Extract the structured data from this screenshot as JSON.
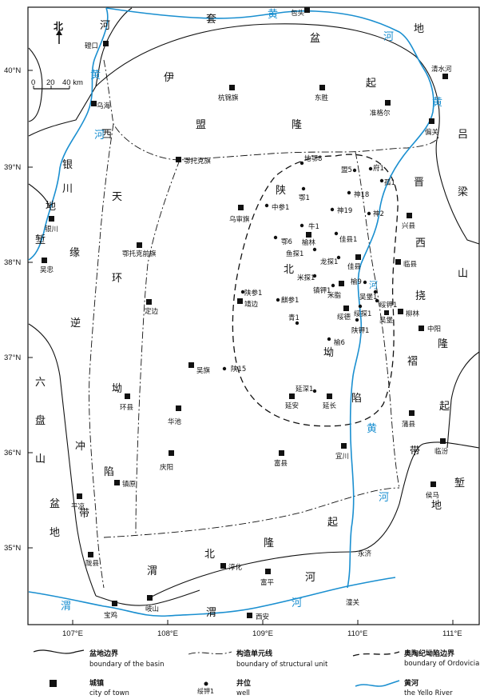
{
  "north": {
    "label": "北"
  },
  "scale": {
    "labels": [
      "0",
      "20",
      "40 km"
    ]
  },
  "lat_ticks": [
    "40°N",
    "39°N",
    "38°N",
    "37°N",
    "36°N",
    "35°N"
  ],
  "lon_ticks": [
    "107°E",
    "108°E",
    "109°E",
    "110°E",
    "111°E"
  ],
  "regions": [
    {
      "id": "he1",
      "text": "河"
    },
    {
      "id": "tao",
      "text": "套"
    },
    {
      "id": "pen",
      "text": "盆"
    },
    {
      "id": "di1",
      "text": "地"
    },
    {
      "id": "yi",
      "text": "伊"
    },
    {
      "id": "meng",
      "text": "盟"
    },
    {
      "id": "long1",
      "text": "隆"
    },
    {
      "id": "qi1",
      "text": "起"
    },
    {
      "id": "lv",
      "text": "吕"
    },
    {
      "id": "liang",
      "text": "梁"
    },
    {
      "id": "shan1",
      "text": "山"
    },
    {
      "id": "jin",
      "text": "晋"
    },
    {
      "id": "xi1",
      "text": "西"
    },
    {
      "id": "nao",
      "text": "挠"
    },
    {
      "id": "long2",
      "text": "隆"
    },
    {
      "id": "zhe",
      "text": "褶"
    },
    {
      "id": "qi2",
      "text": "起"
    },
    {
      "id": "dai1",
      "text": "带"
    },
    {
      "id": "di2",
      "text": "地"
    },
    {
      "id": "qian1",
      "text": "堑"
    },
    {
      "id": "yin",
      "text": "银"
    },
    {
      "id": "chuan",
      "text": "川"
    },
    {
      "id": "di3",
      "text": "地"
    },
    {
      "id": "qian2",
      "text": "堑"
    },
    {
      "id": "xi2",
      "text": "西"
    },
    {
      "id": "tian",
      "text": "天"
    },
    {
      "id": "yuan",
      "text": "缘"
    },
    {
      "id": "huan",
      "text": "环"
    },
    {
      "id": "ni",
      "text": "逆"
    },
    {
      "id": "ao1",
      "text": "坳"
    },
    {
      "id": "chong",
      "text": "冲"
    },
    {
      "id": "xian1",
      "text": "陷"
    },
    {
      "id": "dai2",
      "text": "带"
    },
    {
      "id": "liu",
      "text": "六"
    },
    {
      "id": "pan",
      "text": "盘"
    },
    {
      "id": "shan2",
      "text": "山"
    },
    {
      "id": "pen2",
      "text": "盆"
    },
    {
      "id": "di4",
      "text": "地"
    },
    {
      "id": "shan3",
      "text": "陕"
    },
    {
      "id": "bei1",
      "text": "北"
    },
    {
      "id": "ao2",
      "text": "坳"
    },
    {
      "id": "xian2",
      "text": "陷"
    },
    {
      "id": "wei1",
      "text": "渭"
    },
    {
      "id": "bei2",
      "text": "北"
    },
    {
      "id": "long3",
      "text": "隆"
    },
    {
      "id": "qi3",
      "text": "起"
    },
    {
      "id": "wei2",
      "text": "渭"
    },
    {
      "id": "he2",
      "text": "河"
    },
    {
      "id": "qi4",
      "text": "起"
    }
  ],
  "rivers": [
    {
      "id": "r1",
      "text": "黄"
    },
    {
      "id": "r2",
      "text": "河"
    },
    {
      "id": "r3",
      "text": "黄"
    },
    {
      "id": "r4",
      "text": "河"
    },
    {
      "id": "r5",
      "text": "黄"
    },
    {
      "id": "r6",
      "text": "河"
    },
    {
      "id": "r7",
      "text": "黄"
    },
    {
      "id": "r8",
      "text": "河"
    },
    {
      "id": "r9",
      "text": "渭"
    },
    {
      "id": "r10",
      "text": "河"
    }
  ],
  "towns": [
    {
      "id": "baotou",
      "name": "包头"
    },
    {
      "id": "dengkou",
      "name": "磴口"
    },
    {
      "id": "hangjin",
      "name": "杭锦旗"
    },
    {
      "id": "dongsheng",
      "name": "东胜"
    },
    {
      "id": "zhunge",
      "name": "准格尔"
    },
    {
      "id": "qingshui",
      "name": "清水河"
    },
    {
      "id": "wuhai",
      "name": "乌海"
    },
    {
      "id": "pianguan",
      "name": "偏关"
    },
    {
      "id": "etuoke",
      "name": "鄂托克旗"
    },
    {
      "id": "wushen",
      "name": "乌审旗"
    },
    {
      "id": "xingxian",
      "name": "兴县"
    },
    {
      "id": "yinchuan",
      "name": "银川"
    },
    {
      "id": "etuokeqian",
      "name": "鄂托克前旗"
    },
    {
      "id": "yulin",
      "name": "榆林"
    },
    {
      "id": "jiaxian",
      "name": "佳县"
    },
    {
      "id": "linxian",
      "name": "临县"
    },
    {
      "id": "wuzhong",
      "name": "吴忠"
    },
    {
      "id": "mizhi",
      "name": "米脂"
    },
    {
      "id": "dingbian",
      "name": "定边"
    },
    {
      "id": "jingbian",
      "name": "靖边"
    },
    {
      "id": "suide",
      "name": "绥德"
    },
    {
      "id": "liulin",
      "name": "柳林"
    },
    {
      "id": "wubao",
      "name": "吴堡"
    },
    {
      "id": "zhongyang",
      "name": "中阳"
    },
    {
      "id": "wuqi",
      "name": "吴旗"
    },
    {
      "id": "huanxian",
      "name": "环县"
    },
    {
      "id": "huachi",
      "name": "华池"
    },
    {
      "id": "yanan",
      "name": "延安"
    },
    {
      "id": "yanchang",
      "name": "延长"
    },
    {
      "id": "puxian",
      "name": "蒲县"
    },
    {
      "id": "qingyang",
      "name": "庆阳"
    },
    {
      "id": "fuxian",
      "name": "富县"
    },
    {
      "id": "yichuan",
      "name": "宜川"
    },
    {
      "id": "linfen",
      "name": "临汾"
    },
    {
      "id": "zhenyuan",
      "name": "镇原"
    },
    {
      "id": "pingliang",
      "name": "平凉"
    },
    {
      "id": "houma",
      "name": "侯马"
    },
    {
      "id": "longxian",
      "name": "陇县"
    },
    {
      "id": "chunhua",
      "name": "淳化"
    },
    {
      "id": "fuping",
      "name": "富平"
    },
    {
      "id": "baoji",
      "name": "宝鸡"
    },
    {
      "id": "qishan",
      "name": "岐山"
    },
    {
      "id": "xian",
      "name": "西安"
    }
  ],
  "wells": [
    {
      "id": "w1",
      "name": "地鄂8"
    },
    {
      "id": "w2",
      "name": "盟5"
    },
    {
      "id": "w3",
      "name": "府1"
    },
    {
      "id": "w4",
      "name": "鄂1"
    },
    {
      "id": "w5",
      "name": "孤1"
    },
    {
      "id": "w6",
      "name": "神18"
    },
    {
      "id": "w7",
      "name": "中参1"
    },
    {
      "id": "w8",
      "name": "神19"
    },
    {
      "id": "w9",
      "name": "神2"
    },
    {
      "id": "w10",
      "name": "牛1"
    },
    {
      "id": "w11",
      "name": "鄂6"
    },
    {
      "id": "w12",
      "name": "佳县1"
    },
    {
      "id": "w13",
      "name": "鱼探1"
    },
    {
      "id": "w14",
      "name": "龙探1"
    },
    {
      "id": "w15",
      "name": "米探1"
    },
    {
      "id": "w16",
      "name": "榆9"
    },
    {
      "id": "w17",
      "name": "镇钾1"
    },
    {
      "id": "w18",
      "name": "陕参1"
    },
    {
      "id": "w19",
      "name": "吴堡1"
    },
    {
      "id": "w20",
      "name": "麒参1"
    },
    {
      "id": "w21",
      "name": "绥钾1"
    },
    {
      "id": "w22",
      "name": "绥探1"
    },
    {
      "id": "w23",
      "name": "青1"
    },
    {
      "id": "w24",
      "name": "陕钾1"
    },
    {
      "id": "w25",
      "name": "榆6"
    },
    {
      "id": "w26",
      "name": "陕15"
    },
    {
      "id": "w27",
      "name": "延深1"
    },
    {
      "id": "w28",
      "name": "永济"
    },
    {
      "id": "w29",
      "name": "潼关"
    }
  ],
  "legend": [
    {
      "zh": "盆地边界",
      "en": "boundary of the basin"
    },
    {
      "zh": "构造单元线",
      "en": "boundary of structural unit"
    },
    {
      "zh": "奥陶纪坳陷边界",
      "en": "boundary of Ordovician salt basin"
    },
    {
      "zh": "城镇",
      "en": "city of town"
    },
    {
      "zh": "井位",
      "en": "well",
      "sample": "绥钾1"
    },
    {
      "zh": "黄河",
      "en": "the Yello River"
    }
  ],
  "colors": {
    "river": "#1a8fd0",
    "ink": "#111111"
  }
}
